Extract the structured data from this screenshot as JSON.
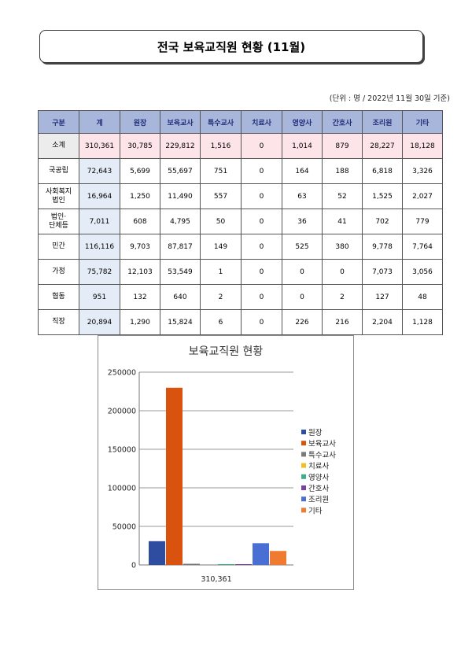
{
  "title": "전국 보육교직원 현황 (11월)",
  "unit_note": "(단위 : 명 / 2022년 11월 30일 기준)",
  "table": {
    "headers": [
      "구분",
      "계",
      "원장",
      "보육교사",
      "특수교사",
      "치료사",
      "영양사",
      "간호사",
      "조리원",
      "기타"
    ],
    "rows": [
      {
        "label": [
          "소계"
        ],
        "cells": [
          "310,361",
          "30,785",
          "229,812",
          "1,516",
          "0",
          "1,014",
          "879",
          "28,227",
          "18,128"
        ]
      },
      {
        "label": [
          "국공립"
        ],
        "cells": [
          "72,643",
          "5,699",
          "55,697",
          "751",
          "0",
          "164",
          "188",
          "6,818",
          "3,326"
        ]
      },
      {
        "label": [
          "사회복지",
          "법인"
        ],
        "cells": [
          "16,964",
          "1,250",
          "11,490",
          "557",
          "0",
          "63",
          "52",
          "1,525",
          "2,027"
        ]
      },
      {
        "label": [
          "법인·",
          "단체등"
        ],
        "cells": [
          "7,011",
          "608",
          "4,795",
          "50",
          "0",
          "36",
          "41",
          "702",
          "779"
        ]
      },
      {
        "label": [
          "민간"
        ],
        "cells": [
          "116,116",
          "9,703",
          "87,817",
          "149",
          "0",
          "525",
          "380",
          "9,778",
          "7,764"
        ]
      },
      {
        "label": [
          "가정"
        ],
        "cells": [
          "75,782",
          "12,103",
          "53,549",
          "1",
          "0",
          "0",
          "0",
          "7,073",
          "3,056"
        ]
      },
      {
        "label": [
          "협동"
        ],
        "cells": [
          "951",
          "132",
          "640",
          "2",
          "0",
          "0",
          "2",
          "127",
          "48"
        ]
      },
      {
        "label": [
          "직장"
        ],
        "cells": [
          "20,894",
          "1,290",
          "15,824",
          "6",
          "0",
          "226",
          "216",
          "2,204",
          "1,128"
        ]
      }
    ]
  },
  "chart_data": {
    "type": "bar",
    "title": "보육교직원 현황",
    "categories": [
      "310,361"
    ],
    "ylim": [
      0,
      250000
    ],
    "yticks": [
      "0",
      "50000",
      "100000",
      "150000",
      "200000",
      "250000"
    ],
    "grid": true,
    "legend": "right",
    "series": [
      {
        "name": "원장",
        "values": [
          30785
        ],
        "color": "#2e4da0"
      },
      {
        "name": "보육교사",
        "values": [
          229812
        ],
        "color": "#d9530f"
      },
      {
        "name": "특수교사",
        "values": [
          1516
        ],
        "color": "#7a7a7a"
      },
      {
        "name": "치료사",
        "values": [
          0
        ],
        "color": "#f0c020"
      },
      {
        "name": "영양사",
        "values": [
          1014
        ],
        "color": "#3ab08a"
      },
      {
        "name": "간호사",
        "values": [
          879
        ],
        "color": "#7a3fa8"
      },
      {
        "name": "조리원",
        "values": [
          28227
        ],
        "color": "#4a6fd4"
      },
      {
        "name": "기타",
        "values": [
          18128
        ],
        "color": "#f07a30"
      }
    ]
  }
}
